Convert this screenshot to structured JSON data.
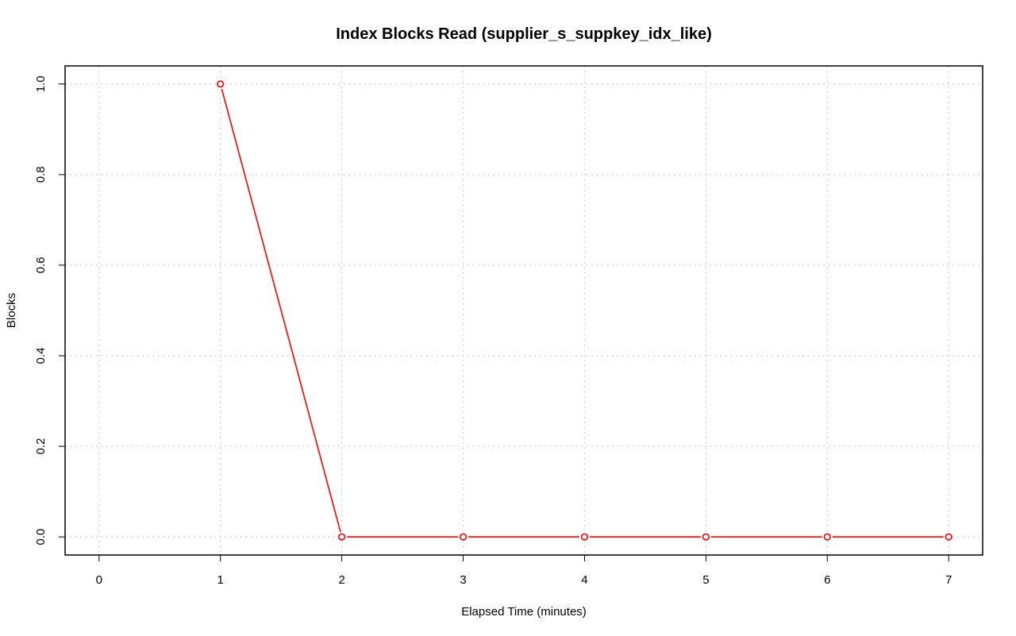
{
  "chart_data": {
    "type": "line",
    "title": "Index Blocks Read (supplier_s_suppkey_idx_like)",
    "xlabel": "Elapsed Time (minutes)",
    "ylabel": "Blocks",
    "x_ticks": [
      "0",
      "1",
      "2",
      "3",
      "4",
      "5",
      "6",
      "7"
    ],
    "y_ticks": [
      "0.0",
      "0.2",
      "0.4",
      "0.6",
      "0.8",
      "1.0"
    ],
    "xlim": [
      -0.28,
      7.28
    ],
    "ylim": [
      -0.04,
      1.04
    ],
    "grid": true,
    "legend": "none",
    "series": [
      {
        "x": [
          1,
          2,
          3,
          4,
          5,
          6,
          7
        ],
        "values": [
          1.0,
          0.0,
          0.0,
          0.0,
          0.0,
          0.0,
          0.0
        ],
        "color": "#ff0000",
        "marker": "open-circle"
      }
    ]
  }
}
